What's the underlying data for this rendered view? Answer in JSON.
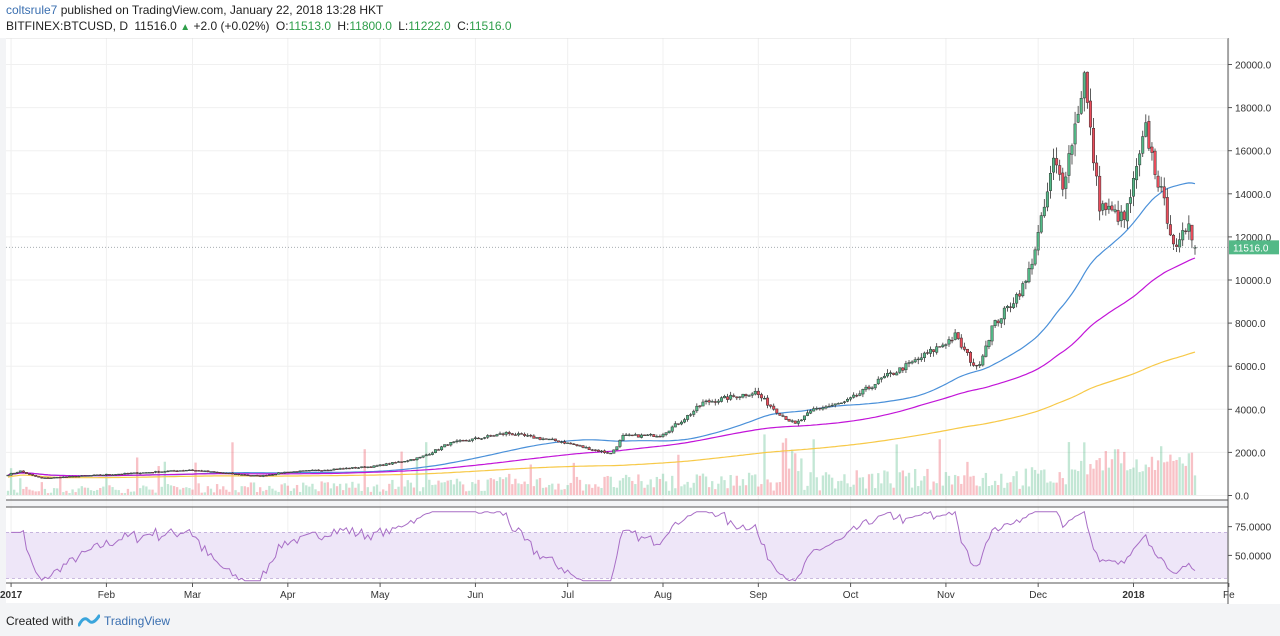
{
  "header": {
    "author": "coltsrule7",
    "published": "published on TradingView.com, January 22, 2018 13:28 HKT",
    "symbol": "BITFINEX:BTCUSD, D",
    "last": "11516.0",
    "change": "+2.0 (+0.02%)",
    "o_label": "O:",
    "o_value": "11513.0",
    "h_label": "H:",
    "h_value": "11800.0",
    "l_label": "L:",
    "l_value": "11222.0",
    "c_label": "C:",
    "c_value": "11516.0"
  },
  "footer": {
    "created_with": "Created with",
    "brand": "TradingView"
  },
  "colors": {
    "up": "#53b987",
    "down": "#eb4d5c",
    "ma_blue": "#4a90d9",
    "ma_purple": "#c214d8",
    "ma_yellow": "#f7c948",
    "rsi_band": "#eee6f8",
    "rsi_line": "#a86ec6"
  },
  "chart_data": {
    "type": "candlestick",
    "price_axis": {
      "ticks": [
        0,
        2000,
        4000,
        6000,
        8000,
        10000,
        12000,
        14000,
        16000,
        18000,
        20000
      ],
      "tick_labels": [
        "0.0",
        "2000.0",
        "4000.0",
        "6000.0",
        "8000.0",
        "10000.0",
        "12000.0",
        "14000.0",
        "16000.0",
        "18000.0",
        "20000.0"
      ],
      "last_price_label": "11516.0",
      "last_price": 11516
    },
    "time_axis": {
      "labels": [
        "2017",
        "Feb",
        "Mar",
        "Apr",
        "May",
        "Jun",
        "Jul",
        "Aug",
        "Sep",
        "Oct",
        "Nov",
        "Dec",
        "2018",
        "Fe"
      ]
    },
    "rsi_axis": {
      "tick_labels": [
        "75.0000",
        "50.0000"
      ],
      "ticks": [
        75,
        50
      ],
      "band": [
        30,
        70
      ]
    },
    "price_anchors": [
      [
        "2017-01-01",
        970
      ],
      [
        "2017-01-05",
        1130
      ],
      [
        "2017-01-12",
        800
      ],
      [
        "2017-02-01",
        960
      ],
      [
        "2017-03-01",
        1190
      ],
      [
        "2017-03-24",
        900
      ],
      [
        "2017-04-01",
        1080
      ],
      [
        "2017-04-30",
        1350
      ],
      [
        "2017-05-15",
        1760
      ],
      [
        "2017-05-24",
        2400
      ],
      [
        "2017-06-12",
        2900
      ],
      [
        "2017-06-30",
        2500
      ],
      [
        "2017-07-16",
        1950
      ],
      [
        "2017-07-20",
        2750
      ],
      [
        "2017-08-01",
        2800
      ],
      [
        "2017-08-15",
        4300
      ],
      [
        "2017-09-01",
        4800
      ],
      [
        "2017-09-14",
        3300
      ],
      [
        "2017-09-20",
        4000
      ],
      [
        "2017-09-30",
        4300
      ],
      [
        "2017-10-12",
        5400
      ],
      [
        "2017-10-20",
        6000
      ],
      [
        "2017-11-05",
        7400
      ],
      [
        "2017-11-12",
        5900
      ],
      [
        "2017-11-17",
        7800
      ],
      [
        "2017-11-28",
        9900
      ],
      [
        "2017-12-07",
        15500
      ],
      [
        "2017-12-10",
        14500
      ],
      [
        "2017-12-17",
        19500
      ],
      [
        "2017-12-22",
        13500
      ],
      [
        "2017-12-30",
        12800
      ],
      [
        "2018-01-06",
        17000
      ],
      [
        "2018-01-12",
        13500
      ],
      [
        "2018-01-16",
        11300
      ],
      [
        "2018-01-20",
        12800
      ],
      [
        "2018-01-22",
        11516
      ]
    ],
    "moving_averages": [
      {
        "name": "MA blue",
        "color": "#4a90d9",
        "end_value": 14600
      },
      {
        "name": "MA purple",
        "color": "#c214d8",
        "end_value": 10900
      },
      {
        "name": "MA yellow",
        "color": "#f7c948",
        "end_value": 7300
      }
    ],
    "last_bar": {
      "open": 11513.0,
      "high": 11800.0,
      "low": 11222.0,
      "close": 11516.0
    }
  }
}
